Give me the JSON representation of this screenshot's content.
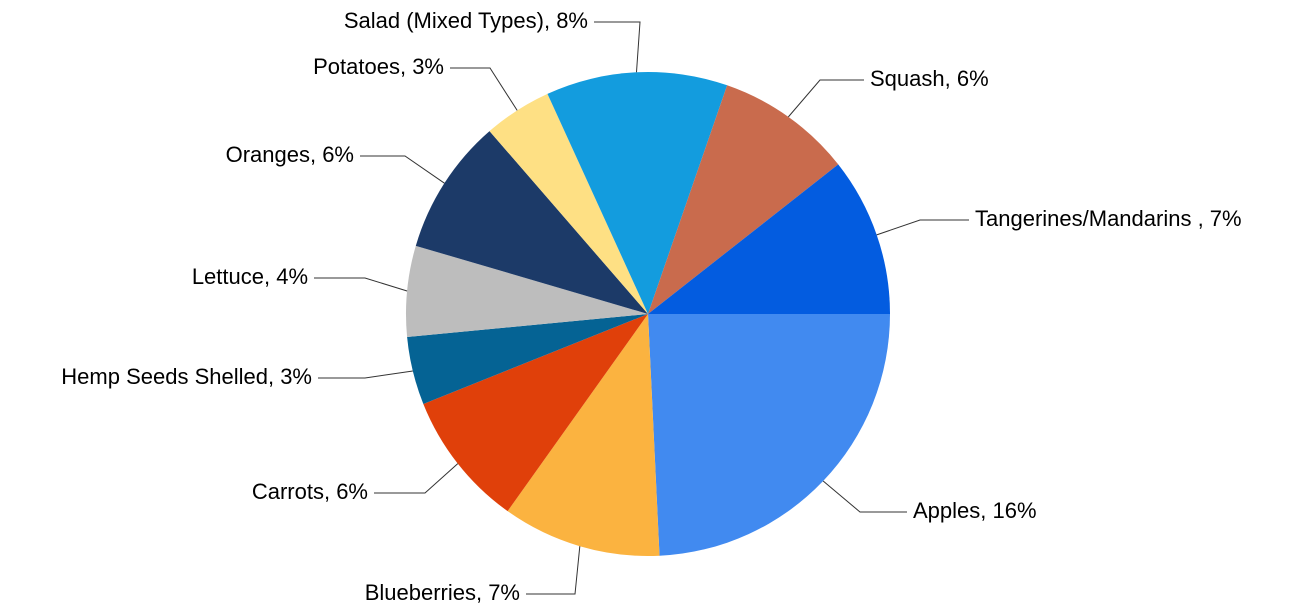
{
  "chart_data": {
    "type": "pie",
    "values": [
      16,
      7,
      6,
      3,
      4,
      6,
      3,
      8,
      6,
      7
    ],
    "value_labels": [
      "Apples, 16%",
      "Blueberries, 7%",
      "Carrots, 6%",
      "Hemp Seeds Shelled, 3%",
      "Lettuce, 4%",
      "Oranges, 6%",
      "Potatoes, 3%",
      "Salad (Mixed Types), 8%",
      "Squash, 6%",
      "Tangerines/Mandarins , 7%"
    ],
    "colors": [
      "#418af0",
      "#fbb340",
      "#e0400a",
      "#056394",
      "#bdbdbd",
      "#1c3a68",
      "#fee084",
      "#139cde",
      "#c96b4d",
      "#035ce0"
    ]
  }
}
